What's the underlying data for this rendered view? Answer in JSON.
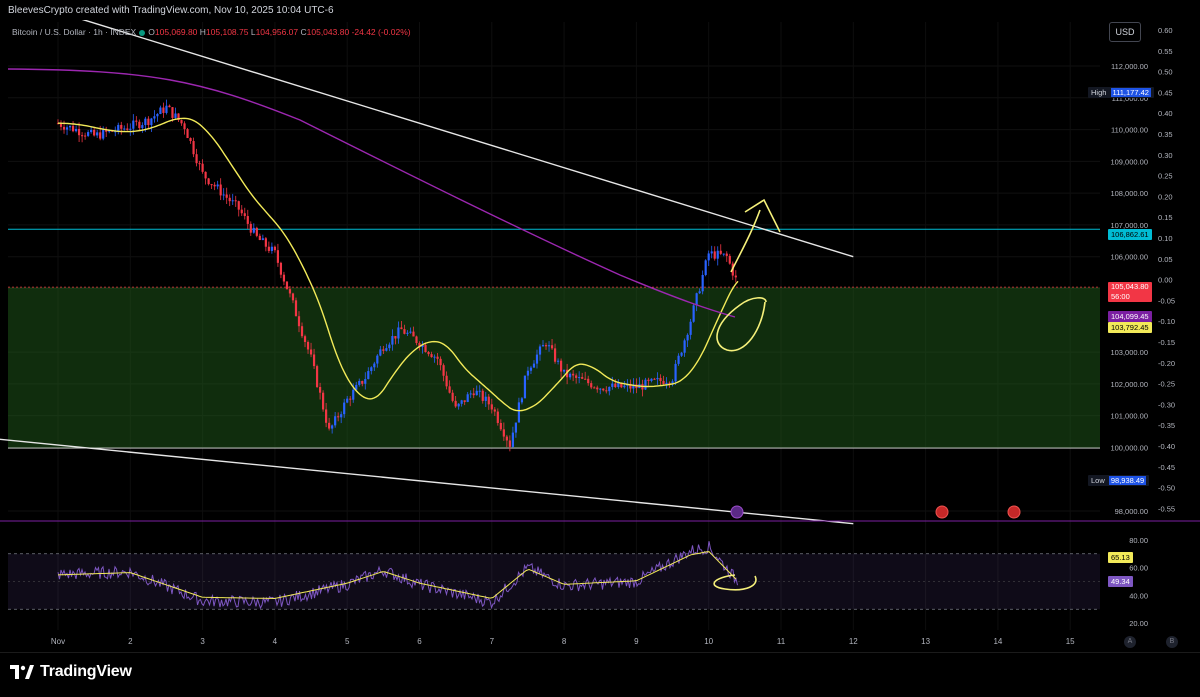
{
  "header": {
    "credit": "BleevesCrypto created with TradingView.com, Nov 10, 2025 10:04 UTC-6",
    "symbol": "Bitcoin / U.S. Dollar · 1h · INDEX",
    "o_label": "O",
    "o_value": "105,069.80",
    "h_label": "H",
    "h_value": "105,108.75",
    "l_label": "L",
    "l_value": "104,956.07",
    "c_label": "C",
    "c_value": "105,043.80",
    "change": "-24.42 (-0.02%)",
    "currency_button": "USD"
  },
  "chart_data": {
    "type": "candlestick",
    "symbol": "Bitcoin / U.S. Dollar",
    "interval": "1h",
    "price_axis": {
      "ylim": [
        97600,
        112800
      ],
      "ticks": [
        98000,
        100000,
        101000,
        102000,
        103000,
        105000,
        106000,
        107000,
        108000,
        109000,
        110000,
        111000,
        112000
      ],
      "tick_labels": [
        "98,000.00",
        "100,000.00",
        "101,000.00",
        "102,000.00",
        "103,000.00",
        "105,000.00",
        "106,000.00",
        "107,000.00",
        "108,000.00",
        "109,000.00",
        "110,000.00",
        "111,000.00",
        "112,000.00"
      ]
    },
    "percent_axis": {
      "labels": [
        "0.60",
        "0.55",
        "0.50",
        "0.45",
        "0.40",
        "0.35",
        "0.30",
        "0.25",
        "0.20",
        "0.15",
        "0.10",
        "0.05",
        "0.00",
        "-0.05",
        "-0.10",
        "-0.15",
        "-0.20",
        "-0.25",
        "-0.30",
        "-0.35",
        "-0.40",
        "-0.45",
        "-0.50",
        "-0.55"
      ]
    },
    "date_axis": {
      "labels": [
        "Nov",
        "2",
        "3",
        "4",
        "5",
        "6",
        "7",
        "8",
        "9",
        "10",
        "11",
        "12",
        "13",
        "14",
        "15"
      ]
    },
    "series_close_approx": [
      {
        "x": "Nov 1 00:00",
        "y": 110200
      },
      {
        "x": "Nov 1 12:00",
        "y": 109800
      },
      {
        "x": "Nov 2 00:00",
        "y": 110100
      },
      {
        "x": "Nov 2 06:00",
        "y": 110300
      },
      {
        "x": "Nov 2 12:00",
        "y": 110700
      },
      {
        "x": "Nov 2 18:00",
        "y": 110100
      },
      {
        "x": "Nov 3 00:00",
        "y": 108600
      },
      {
        "x": "Nov 3 12:00",
        "y": 107500
      },
      {
        "x": "Nov 3 18:00",
        "y": 106600
      },
      {
        "x": "Nov 4 00:00",
        "y": 106100
      },
      {
        "x": "Nov 4 06:00",
        "y": 104500
      },
      {
        "x": "Nov 4 12:00",
        "y": 102800
      },
      {
        "x": "Nov 4 18:00",
        "y": 100500
      },
      {
        "x": "Nov 5 00:00",
        "y": 101500
      },
      {
        "x": "Nov 5 06:00",
        "y": 102200
      },
      {
        "x": "Nov 5 12:00",
        "y": 103200
      },
      {
        "x": "Nov 5 18:00",
        "y": 103700
      },
      {
        "x": "Nov 6 00:00",
        "y": 103300
      },
      {
        "x": "Nov 6 06:00",
        "y": 102800
      },
      {
        "x": "Nov 6 12:00",
        "y": 101200
      },
      {
        "x": "Nov 6 18:00",
        "y": 101800
      },
      {
        "x": "Nov 7 00:00",
        "y": 101300
      },
      {
        "x": "Nov 7 06:00",
        "y": 100100
      },
      {
        "x": "Nov 7 12:00",
        "y": 102500
      },
      {
        "x": "Nov 7 18:00",
        "y": 103300
      },
      {
        "x": "Nov 8 00:00",
        "y": 102300
      },
      {
        "x": "Nov 8 12:00",
        "y": 101900
      },
      {
        "x": "Nov 9 00:00",
        "y": 101900
      },
      {
        "x": "Nov 9 12:00",
        "y": 102200
      },
      {
        "x": "Nov 9 18:00",
        "y": 104000
      },
      {
        "x": "Nov 10 00:00",
        "y": 106100
      },
      {
        "x": "Nov 10 06:00",
        "y": 106000
      },
      {
        "x": "Nov 10 10:00",
        "y": 105044
      }
    ],
    "moving_averages": [
      {
        "color": "#f2ea59",
        "value": "103,792.45"
      },
      {
        "color": "#9c27b0",
        "value": "104,099.45"
      }
    ],
    "horizontal_levels": [
      {
        "price": 106862.61,
        "label": "106,862.61",
        "color": "#00bcd4"
      },
      {
        "price": 105043.8,
        "label": "105,043.80",
        "color": "#f23645"
      }
    ],
    "zone": {
      "top": 105040,
      "bottom": 99980,
      "color": "#1f5a1a"
    },
    "trendlines": [
      {
        "from": {
          "x": "Oct 31",
          "y": 114400
        },
        "to": {
          "x": "Nov 12",
          "y": 106000
        }
      },
      {
        "from": {
          "x": "Oct 31",
          "y": 100300
        },
        "to": {
          "x": "Nov 12",
          "y": 97600
        }
      }
    ],
    "markers": {
      "high_label": "High",
      "high_value": "111,177.42",
      "low_label": "Low",
      "low_value": "98,938.49",
      "last_price": "105,043.80",
      "countdown": "56:00",
      "ma_purple_value": "104,099.45",
      "ma_yellow_value": "103,792.45",
      "level_value": "106,862.61"
    },
    "rsi": {
      "ylim": [
        15,
        85
      ],
      "ticks": [
        20,
        40,
        60,
        80
      ],
      "tick_labels": [
        "20.00",
        "40.00",
        "60.00",
        "80.00"
      ],
      "bands": [
        70,
        30
      ],
      "rsi_value": "49.34",
      "ma_value": "65.13",
      "values_approx": [
        {
          "x": "Nov 1",
          "y": 55
        },
        {
          "x": "Nov 2",
          "y": 57
        },
        {
          "x": "Nov 3",
          "y": 36
        },
        {
          "x": "Nov 4",
          "y": 35
        },
        {
          "x": "Nov 5",
          "y": 48
        },
        {
          "x": "Nov 5 12:00",
          "y": 58
        },
        {
          "x": "Nov 6",
          "y": 48
        },
        {
          "x": "Nov 7",
          "y": 35
        },
        {
          "x": "Nov 7 12:00",
          "y": 60
        },
        {
          "x": "Nov 8",
          "y": 47
        },
        {
          "x": "Nov 9",
          "y": 50
        },
        {
          "x": "Nov 9 18:00",
          "y": 72
        },
        {
          "x": "Nov 10",
          "y": 75
        },
        {
          "x": "Nov 10 10:00",
          "y": 49
        }
      ]
    },
    "pane_buttons": [
      "A",
      "B"
    ]
  },
  "footer": {
    "brand": "TradingView"
  }
}
